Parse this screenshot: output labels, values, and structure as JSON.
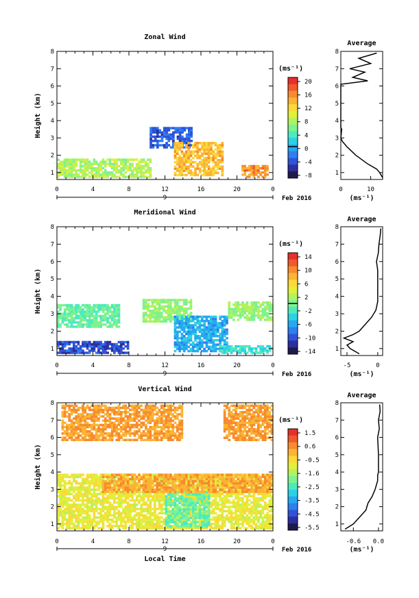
{
  "chart_data": [
    {
      "type": "heatmap",
      "title": "Zonal Wind",
      "ylabel": "Height (km)",
      "xlabel": "",
      "x_ticks": [
        "0",
        "4",
        "8",
        "12",
        "16",
        "20",
        "0"
      ],
      "xlim": [
        0,
        24
      ],
      "y_ticks": [
        "1",
        "2",
        "3",
        "4",
        "5",
        "6",
        "7",
        "8"
      ],
      "ylim": [
        0.6,
        8
      ],
      "date_day": "9",
      "date_label": "Feb 2016",
      "colorbar": {
        "unit": "(ms⁻¹)",
        "ticks": [
          "20",
          "16",
          "12",
          "8",
          "4",
          "0",
          "-4",
          "-8"
        ],
        "range": [
          -10,
          22
        ],
        "zero_line": 0
      },
      "regions": [
        {
          "t0": 0,
          "t1": 10.5,
          "h0": 0.7,
          "h1": 1.7,
          "value": 8
        },
        {
          "t0": 10.3,
          "t1": 15,
          "h0": 2.4,
          "h1": 3.6,
          "value": -4
        },
        {
          "t0": 13,
          "t1": 18.5,
          "h0": 0.8,
          "h1": 2.7,
          "value": 14
        },
        {
          "t0": 20.5,
          "t1": 23.5,
          "h0": 0.7,
          "h1": 1.4,
          "value": 16
        }
      ],
      "average": {
        "title": "Average",
        "unit": "(ms⁻¹)",
        "x_ticks": [
          "0",
          "10"
        ],
        "xlim": [
          0,
          14
        ],
        "profile": [
          {
            "h": 0.7,
            "v": 14
          },
          {
            "h": 1.0,
            "v": 13
          },
          {
            "h": 1.2,
            "v": 12
          },
          {
            "h": 1.5,
            "v": 9
          },
          {
            "h": 2.0,
            "v": 5
          },
          {
            "h": 2.5,
            "v": 2
          },
          {
            "h": 2.8,
            "v": 0.5
          },
          {
            "h": 3.0,
            "v": 0
          },
          {
            "h": 3.5,
            "v": 0.3
          },
          {
            "h": 3.6,
            "v": 0
          },
          {
            "h": 6.1,
            "v": 0
          },
          {
            "h": 6.3,
            "v": 9
          },
          {
            "h": 6.5,
            "v": 4
          },
          {
            "h": 6.8,
            "v": 8
          },
          {
            "h": 7.0,
            "v": 3
          },
          {
            "h": 7.3,
            "v": 10
          },
          {
            "h": 7.6,
            "v": 6
          },
          {
            "h": 7.9,
            "v": 12
          }
        ]
      }
    },
    {
      "type": "heatmap",
      "title": "Meridional Wind",
      "ylabel": "Height (km)",
      "xlabel": "",
      "x_ticks": [
        "0",
        "4",
        "8",
        "12",
        "16",
        "20",
        "0"
      ],
      "xlim": [
        0,
        24
      ],
      "y_ticks": [
        "1",
        "2",
        "3",
        "4",
        "5",
        "6",
        "7",
        "8"
      ],
      "ylim": [
        0.6,
        8
      ],
      "date_day": "9",
      "date_label": "Feb 2016",
      "colorbar": {
        "unit": "(ms⁻¹)",
        "ticks": [
          "14",
          "10",
          "6",
          "2",
          "-2",
          "-6",
          "-10",
          "-14"
        ],
        "range": [
          -16,
          16
        ],
        "zero_line": 0
      },
      "regions": [
        {
          "t0": 0,
          "t1": 8,
          "h0": 0.7,
          "h1": 1.4,
          "value": -11
        },
        {
          "t0": 0,
          "t1": 7,
          "h0": 2.2,
          "h1": 3.5,
          "value": -1
        },
        {
          "t0": 9.5,
          "t1": 15,
          "h0": 2.5,
          "h1": 3.8,
          "value": 1
        },
        {
          "t0": 13,
          "t1": 19,
          "h0": 0.8,
          "h1": 2.8,
          "value": -6
        },
        {
          "t0": 19,
          "t1": 24,
          "h0": 2.6,
          "h1": 3.6,
          "value": 1
        },
        {
          "t0": 18,
          "t1": 24,
          "h0": 0.7,
          "h1": 1.1,
          "value": -3
        }
      ],
      "average": {
        "title": "Average",
        "unit": "(ms⁻¹)",
        "x_ticks": [
          "-5",
          "0"
        ],
        "xlim": [
          -6,
          0.8
        ],
        "profile": [
          {
            "h": 0.7,
            "v": -3
          },
          {
            "h": 1.0,
            "v": -4.5
          },
          {
            "h": 1.2,
            "v": -5
          },
          {
            "h": 1.4,
            "v": -4
          },
          {
            "h": 1.6,
            "v": -5.5
          },
          {
            "h": 1.8,
            "v": -4
          },
          {
            "h": 2.0,
            "v": -3
          },
          {
            "h": 2.4,
            "v": -2
          },
          {
            "h": 2.8,
            "v": -1
          },
          {
            "h": 3.2,
            "v": -0.3
          },
          {
            "h": 3.7,
            "v": 0
          },
          {
            "h": 5.5,
            "v": 0
          },
          {
            "h": 6.0,
            "v": -0.2
          },
          {
            "h": 6.5,
            "v": 0.1
          },
          {
            "h": 7.0,
            "v": 0.2
          },
          {
            "h": 7.5,
            "v": 0.4
          },
          {
            "h": 7.9,
            "v": 0.5
          }
        ]
      }
    },
    {
      "type": "heatmap",
      "title": "Vertical Wind",
      "ylabel": "Height (km)",
      "xlabel": "Local Time",
      "x_ticks": [
        "0",
        "4",
        "8",
        "12",
        "16",
        "20",
        "0"
      ],
      "xlim": [
        0,
        24
      ],
      "y_ticks": [
        "1",
        "2",
        "3",
        "4",
        "5",
        "6",
        "7",
        "8"
      ],
      "ylim": [
        0.6,
        8
      ],
      "date_day": "9",
      "date_label": "Feb 2016",
      "colorbar": {
        "unit": "(ms⁻¹)",
        "ticks": [
          "1.5",
          "0.6",
          "-0.5",
          "-1.6",
          "-2.5",
          "-3.5",
          "-4.5",
          "-5.5"
        ],
        "range": [
          -6,
          2
        ],
        "zero_line": null
      },
      "regions": [
        {
          "t0": 0,
          "t1": 24,
          "h0": 0.7,
          "h1": 3.8,
          "value": -0.8
        },
        {
          "t0": 12,
          "t1": 17,
          "h0": 0.8,
          "h1": 2.8,
          "value": -2.2
        },
        {
          "t0": 5,
          "t1": 24,
          "h0": 2.8,
          "h1": 3.8,
          "value": 0.3
        },
        {
          "t0": 0.5,
          "t1": 14,
          "h0": 5.8,
          "h1": 7.8,
          "value": 0.4
        },
        {
          "t0": 18.5,
          "t1": 24,
          "h0": 5.8,
          "h1": 7.8,
          "value": 0.4
        }
      ],
      "average": {
        "title": "Average",
        "unit": "(ms⁻¹)",
        "x_ticks": [
          "-0.6",
          "0.0"
        ],
        "xlim": [
          -0.9,
          0.1
        ],
        "profile": [
          {
            "h": 0.7,
            "v": -0.8
          },
          {
            "h": 1.0,
            "v": -0.6
          },
          {
            "h": 1.4,
            "v": -0.45
          },
          {
            "h": 1.8,
            "v": -0.3
          },
          {
            "h": 2.2,
            "v": -0.25
          },
          {
            "h": 2.6,
            "v": -0.15
          },
          {
            "h": 3.0,
            "v": -0.08
          },
          {
            "h": 3.5,
            "v": -0.02
          },
          {
            "h": 3.8,
            "v": -0.02
          },
          {
            "h": 4.0,
            "v": 0.0
          },
          {
            "h": 5.0,
            "v": 0.0
          },
          {
            "h": 6.0,
            "v": -0.02
          },
          {
            "h": 6.5,
            "v": 0.02
          },
          {
            "h": 7.0,
            "v": 0.0
          },
          {
            "h": 7.5,
            "v": 0.04
          },
          {
            "h": 7.9,
            "v": 0.03
          }
        ]
      }
    }
  ],
  "palette": [
    "#1f1a4e",
    "#2c2f9c",
    "#3053d8",
    "#2f7ff0",
    "#27a8f0",
    "#2ed1e3",
    "#4deac0",
    "#7ff28f",
    "#b4f25d",
    "#e2ef3b",
    "#fbd93a",
    "#fbb435",
    "#f78b2f",
    "#f2592b",
    "#e7302b"
  ]
}
